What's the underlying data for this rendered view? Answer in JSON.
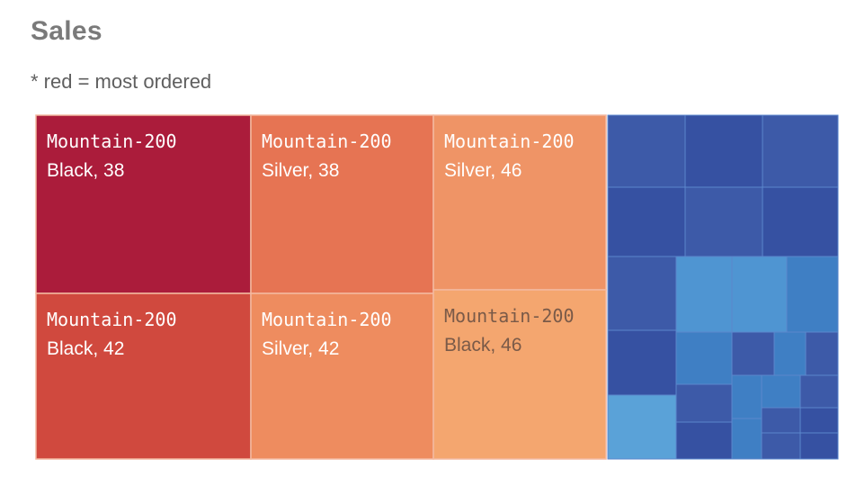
{
  "chart_data": {
    "type": "treemap",
    "title": "Sales",
    "subtitle": "* red = most ordered",
    "labeled_cells": [
      {
        "product": "Mountain-200",
        "variant": "Black",
        "value": 38,
        "color": "#ab1c3b",
        "text_color": "#ffffff"
      },
      {
        "product": "Mountain-200",
        "variant": "Black",
        "value": 42,
        "color": "#d0493e",
        "text_color": "#ffffff"
      },
      {
        "product": "Mountain-200",
        "variant": "Silver",
        "value": 38,
        "color": "#e67453",
        "text_color": "#ffffff"
      },
      {
        "product": "Mountain-200",
        "variant": "Silver",
        "value": 42,
        "color": "#ee8c5f",
        "text_color": "#ffffff"
      },
      {
        "product": "Mountain-200",
        "variant": "Silver",
        "value": 46,
        "color": "#ef9466",
        "text_color": "#ffffff"
      },
      {
        "product": "Mountain-200",
        "variant": "Black",
        "value": 46,
        "color": "#f4a66f",
        "text_color": "#7a5a48"
      }
    ],
    "unlabeled_cell_colors": [
      "#3d5aa8",
      "#4f95d2",
      "#3f7fc4",
      "#3651a2",
      "#5aa2d8"
    ]
  }
}
